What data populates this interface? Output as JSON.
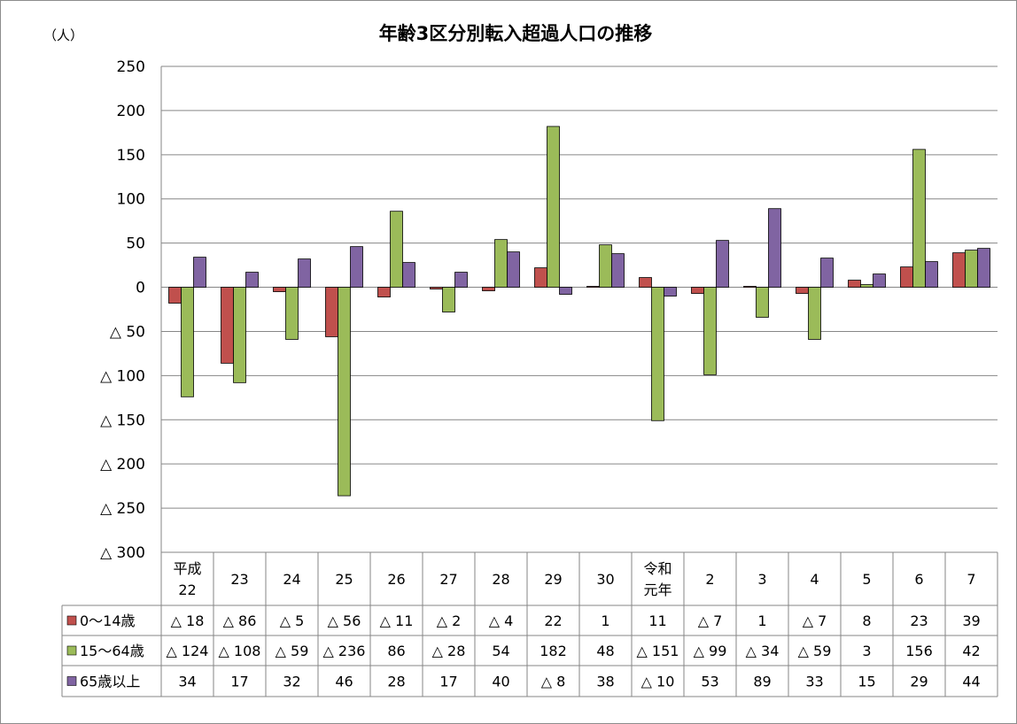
{
  "chart_data": {
    "type": "bar",
    "title": "年齢3区分別転入超過人口の推移",
    "unit_label": "（人）",
    "ylim": [
      -300,
      250
    ],
    "ytick_values": [
      250,
      200,
      150,
      100,
      50,
      0,
      -50,
      -100,
      -150,
      -200,
      -250,
      -300
    ],
    "ytick_labels": [
      "250",
      "200",
      "150",
      "100",
      "50",
      "0",
      "△ 50",
      "△ 100",
      "△ 150",
      "△ 200",
      "△ 250",
      "△ 300"
    ],
    "grid": true,
    "legend_placement": "data-table-left",
    "categories": [
      [
        "平成",
        "22"
      ],
      [
        "23"
      ],
      [
        "24"
      ],
      [
        "25"
      ],
      [
        "26"
      ],
      [
        "27"
      ],
      [
        "28"
      ],
      [
        "29"
      ],
      [
        "30"
      ],
      [
        "令和",
        "元年"
      ],
      [
        "2"
      ],
      [
        "3"
      ],
      [
        "4"
      ],
      [
        "5"
      ],
      [
        "6"
      ],
      [
        "7"
      ]
    ],
    "series": [
      {
        "name": "0〜14歳",
        "color": "#c0504d",
        "values": [
          -18,
          -86,
          -5,
          -56,
          -11,
          -2,
          -4,
          22,
          1,
          11,
          -7,
          1,
          -7,
          8,
          23,
          39
        ],
        "labels": [
          "△ 18",
          "△ 86",
          "△ 5",
          "△ 56",
          "△ 11",
          "△ 2",
          "△ 4",
          "22",
          "1",
          "11",
          "△ 7",
          "1",
          "△ 7",
          "8",
          "23",
          "39"
        ]
      },
      {
        "name": "15〜64歳",
        "color": "#9bbb59",
        "values": [
          -124,
          -108,
          -59,
          -236,
          86,
          -28,
          54,
          182,
          48,
          -151,
          -99,
          -34,
          -59,
          3,
          156,
          42
        ],
        "labels": [
          "△ 124",
          "△ 108",
          "△ 59",
          "△ 236",
          "86",
          "△ 28",
          "54",
          "182",
          "48",
          "△ 151",
          "△ 99",
          "△ 34",
          "△ 59",
          "3",
          "156",
          "42"
        ]
      },
      {
        "name": "65歳以上",
        "color": "#8064a2",
        "values": [
          34,
          17,
          32,
          46,
          28,
          17,
          40,
          -8,
          38,
          -10,
          53,
          89,
          33,
          15,
          29,
          44
        ],
        "labels": [
          "34",
          "17",
          "32",
          "46",
          "28",
          "17",
          "40",
          "△ 8",
          "38",
          "△ 10",
          "53",
          "89",
          "33",
          "15",
          "29",
          "44"
        ]
      }
    ]
  }
}
